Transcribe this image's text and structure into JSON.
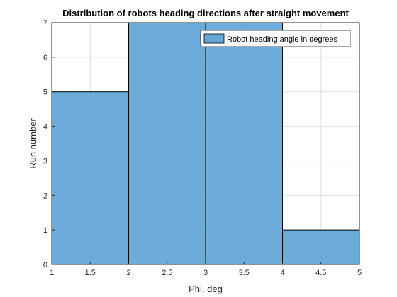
{
  "chart_data": {
    "type": "bar",
    "title": "Distribution of robots heading directions after straight movement",
    "xlabel": "Phi, deg",
    "ylabel": "Run number",
    "xlim": [
      1,
      5
    ],
    "ylim": [
      0,
      7
    ],
    "x_ticks": [
      "1",
      "1.5",
      "2",
      "2.5",
      "3",
      "3.5",
      "4",
      "4.5",
      "5"
    ],
    "y_ticks": [
      "0",
      "1",
      "2",
      "3",
      "4",
      "5",
      "6",
      "7"
    ],
    "bins": [
      {
        "from": 1,
        "to": 2,
        "value": 5
      },
      {
        "from": 2,
        "to": 3,
        "value": 7
      },
      {
        "from": 3,
        "to": 4,
        "value": 7
      },
      {
        "from": 4,
        "to": 5,
        "value": 1
      }
    ],
    "series": [
      {
        "name": "Robot heading angle in degrees",
        "values": [
          5,
          7,
          7,
          1
        ]
      }
    ],
    "grid": true,
    "legend_position": "top-right",
    "bar_color": "#64a7d8",
    "bar_edge_color": "#000000",
    "grid_color": "#dfdfdf",
    "axis_color": "#262626"
  }
}
